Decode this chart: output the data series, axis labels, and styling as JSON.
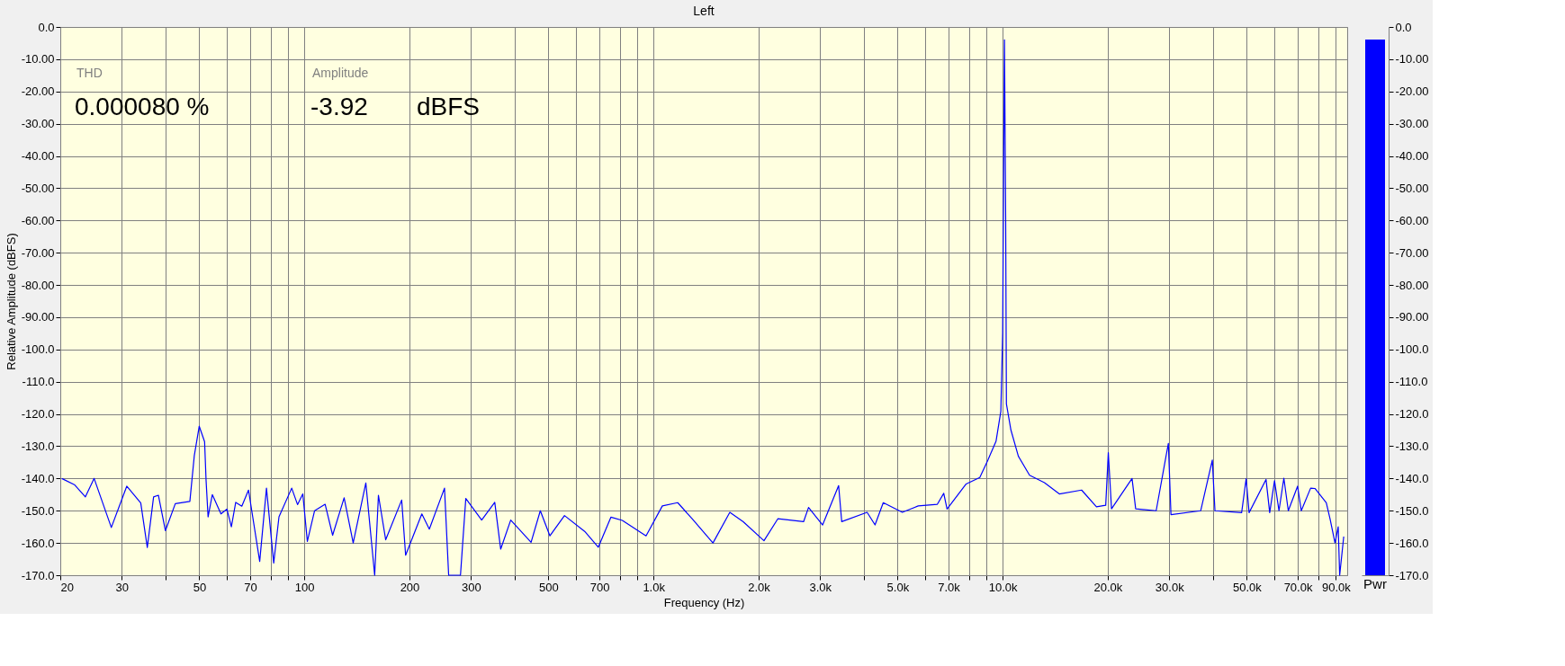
{
  "chart_data": [
    {
      "type": "line",
      "title": "Left",
      "xlabel": "Frequency (Hz)",
      "ylabel": "Relative Amplitude (dBFS)",
      "log": "x",
      "grid": true,
      "marker": "none",
      "line_style": "solid",
      "xlim": [
        20,
        97000
      ],
      "xticks": [
        20,
        30,
        {
          "value": 40,
          "label": null
        },
        50,
        {
          "value": 60,
          "label": null
        },
        70,
        {
          "value": 80,
          "label": null
        },
        {
          "value": 90,
          "label": null
        },
        100,
        200,
        300,
        {
          "value": 400,
          "label": null
        },
        500,
        {
          "value": 600,
          "label": null
        },
        700,
        {
          "value": 800,
          "label": null
        },
        {
          "value": 900,
          "label": null
        },
        {
          "value": 1000,
          "label": "1.0k"
        },
        {
          "value": 2000,
          "label": "2.0k"
        },
        {
          "value": 3000,
          "label": "3.0k"
        },
        {
          "value": 4000,
          "label": null
        },
        {
          "value": 5000,
          "label": "5.0k"
        },
        {
          "value": 6000,
          "label": null
        },
        {
          "value": 7000,
          "label": "7.0k"
        },
        {
          "value": 8000,
          "label": null
        },
        {
          "value": 9000,
          "label": null
        },
        {
          "value": 10000,
          "label": "10.0k"
        },
        {
          "value": 20000,
          "label": "20.0k"
        },
        {
          "value": 30000,
          "label": "30.0k"
        },
        {
          "value": 40000,
          "label": null
        },
        {
          "value": 50000,
          "label": "50.0k"
        },
        {
          "value": 60000,
          "label": null
        },
        {
          "value": 70000,
          "label": "70.0k"
        },
        {
          "value": 80000,
          "label": null
        },
        {
          "value": 90000,
          "label": "90.0k"
        }
      ],
      "ylim": [
        -170,
        0
      ],
      "yticks": [
        {
          "value": 0,
          "label": "0.0"
        },
        {
          "value": -10,
          "label": "-10.00"
        },
        {
          "value": -20,
          "label": "-20.00"
        },
        {
          "value": -30,
          "label": "-30.00"
        },
        {
          "value": -40,
          "label": "-40.00"
        },
        {
          "value": -50,
          "label": "-50.00"
        },
        {
          "value": -60,
          "label": "-60.00"
        },
        {
          "value": -70,
          "label": "-70.00"
        },
        {
          "value": -80,
          "label": "-80.00"
        },
        {
          "value": -90,
          "label": "-90.00"
        },
        {
          "value": -100,
          "label": "-100.0"
        },
        {
          "value": -110,
          "label": "-110.0"
        },
        {
          "value": -120,
          "label": "-120.0"
        },
        {
          "value": -130,
          "label": "-130.0"
        },
        {
          "value": -140,
          "label": "-140.0"
        },
        {
          "value": -150,
          "label": "-150.0"
        },
        {
          "value": -160,
          "label": "-160.0"
        },
        {
          "value": -170,
          "label": "-170.0"
        }
      ],
      "annotations": [
        "THD",
        "0.000080 %",
        "Amplitude",
        "-3.92",
        "dBFS"
      ],
      "x": [
        20.2,
        22,
        23.6,
        25,
        28,
        31,
        34,
        35.5,
        37,
        38.2,
        40,
        42.7,
        47,
        48.4,
        50,
        51.8,
        52.3,
        53,
        54.5,
        57.7,
        60,
        61.8,
        63.6,
        66.2,
        69.2,
        74.5,
        77.9,
        81.7,
        84.6,
        92,
        95.6,
        99,
        102,
        107,
        114.7,
        120.5,
        130,
        138,
        150,
        159,
        163,
        171,
        190,
        195,
        217,
        228,
        252,
        259,
        280,
        290,
        322,
        351,
        365,
        390,
        446,
        474,
        505,
        556,
        635,
        695,
        755,
        814,
        952,
        1060,
        1173,
        1290,
        1480,
        1654,
        1807,
        2072,
        2270,
        2690,
        2780,
        3050,
        3390,
        3460,
        4090,
        4310,
        4550,
        5160,
        5730,
        6500,
        6780,
        6930,
        7860,
        8600,
        9070,
        9570,
        9880,
        10000,
        10070,
        10120,
        10200,
        10250,
        10560,
        11090,
        11940,
        13170,
        14530,
        16830,
        18560,
        19730,
        20070,
        20500,
        23470,
        24040,
        27520,
        29820,
        30340,
        36920,
        39850,
        40550,
        48350,
        49800,
        50790,
        56790,
        58180,
        60060,
        61850,
        63870,
        65770,
        69930,
        71650,
        76200,
        78400,
        84500,
        86600,
        89500,
        91400,
        92300,
        94800
      ],
      "series": [
        {
          "color": "#0000ff",
          "values": [
            -140,
            -142,
            -145.7,
            -140,
            -155.2,
            -142.4,
            -147.6,
            -161.4,
            -145.7,
            -145.2,
            -156.2,
            -147.8,
            -147.1,
            -132.9,
            -123.8,
            -128.6,
            -140.5,
            -151.9,
            -145,
            -151,
            -149.5,
            -155,
            -147.4,
            -148.6,
            -143.6,
            -165.7,
            -143,
            -166.2,
            -151.9,
            -143,
            -148.1,
            -144.8,
            -159.5,
            -150,
            -148,
            -157.6,
            -146,
            -160,
            -141.4,
            -170,
            -145.2,
            -159,
            -146.7,
            -163.8,
            -151,
            -155.7,
            -143,
            -170,
            -170,
            -146.2,
            -152.9,
            -147.4,
            -161.9,
            -152.9,
            -159.8,
            -150,
            -157.8,
            -151.5,
            -156.4,
            -161.3,
            -152,
            -153,
            -157.8,
            -148.5,
            -147.5,
            -152.5,
            -160,
            -150.5,
            -153.4,
            -159.3,
            -152.5,
            -153.4,
            -149,
            -154.4,
            -142.2,
            -153.4,
            -150.5,
            -154.4,
            -147.5,
            -150.5,
            -148.5,
            -148,
            -144.6,
            -149.5,
            -141.7,
            -139.7,
            -134.3,
            -128.5,
            -119.2,
            -94.8,
            -39,
            -4,
            -59.9,
            -116.9,
            -125,
            -133.1,
            -139,
            -141.3,
            -144.8,
            -143.6,
            -148.8,
            -148.3,
            -132,
            -149.4,
            -140,
            -149.4,
            -150,
            -129.1,
            -151.2,
            -150,
            -134.3,
            -150,
            -150.6,
            -140.1,
            -150.6,
            -140.3,
            -150.6,
            -140.7,
            -150,
            -139.9,
            -150,
            -142.4,
            -150,
            -143,
            -143.1,
            -147.5,
            -152.5,
            -160,
            -155,
            -170,
            -158
          ]
        }
      ]
    },
    {
      "type": "bar",
      "categories": [
        "Pwr"
      ],
      "base": [
        -170
      ],
      "values": [
        166.1
      ],
      "colors": [
        "#0000ff"
      ],
      "ylim": [
        -170,
        0
      ],
      "yticks": [
        {
          "value": 0,
          "label": "0.0"
        },
        {
          "value": -10,
          "label": "-10.00"
        },
        {
          "value": -20,
          "label": "-20.00"
        },
        {
          "value": -30,
          "label": "-30.00"
        },
        {
          "value": -40,
          "label": "-40.00"
        },
        {
          "value": -50,
          "label": "-50.00"
        },
        {
          "value": -60,
          "label": "-60.00"
        },
        {
          "value": -70,
          "label": "-70.00"
        },
        {
          "value": -80,
          "label": "-80.00"
        },
        {
          "value": -90,
          "label": "-90.00"
        },
        {
          "value": -100,
          "label": "-100.0"
        },
        {
          "value": -110,
          "label": "-110.0"
        },
        {
          "value": -120,
          "label": "-120.0"
        },
        {
          "value": -130,
          "label": "-130.0"
        },
        {
          "value": -140,
          "label": "-140.0"
        },
        {
          "value": -150,
          "label": "-150.0"
        },
        {
          "value": -160,
          "label": "-160.0"
        },
        {
          "value": -170,
          "label": "-170.0"
        }
      ]
    }
  ]
}
